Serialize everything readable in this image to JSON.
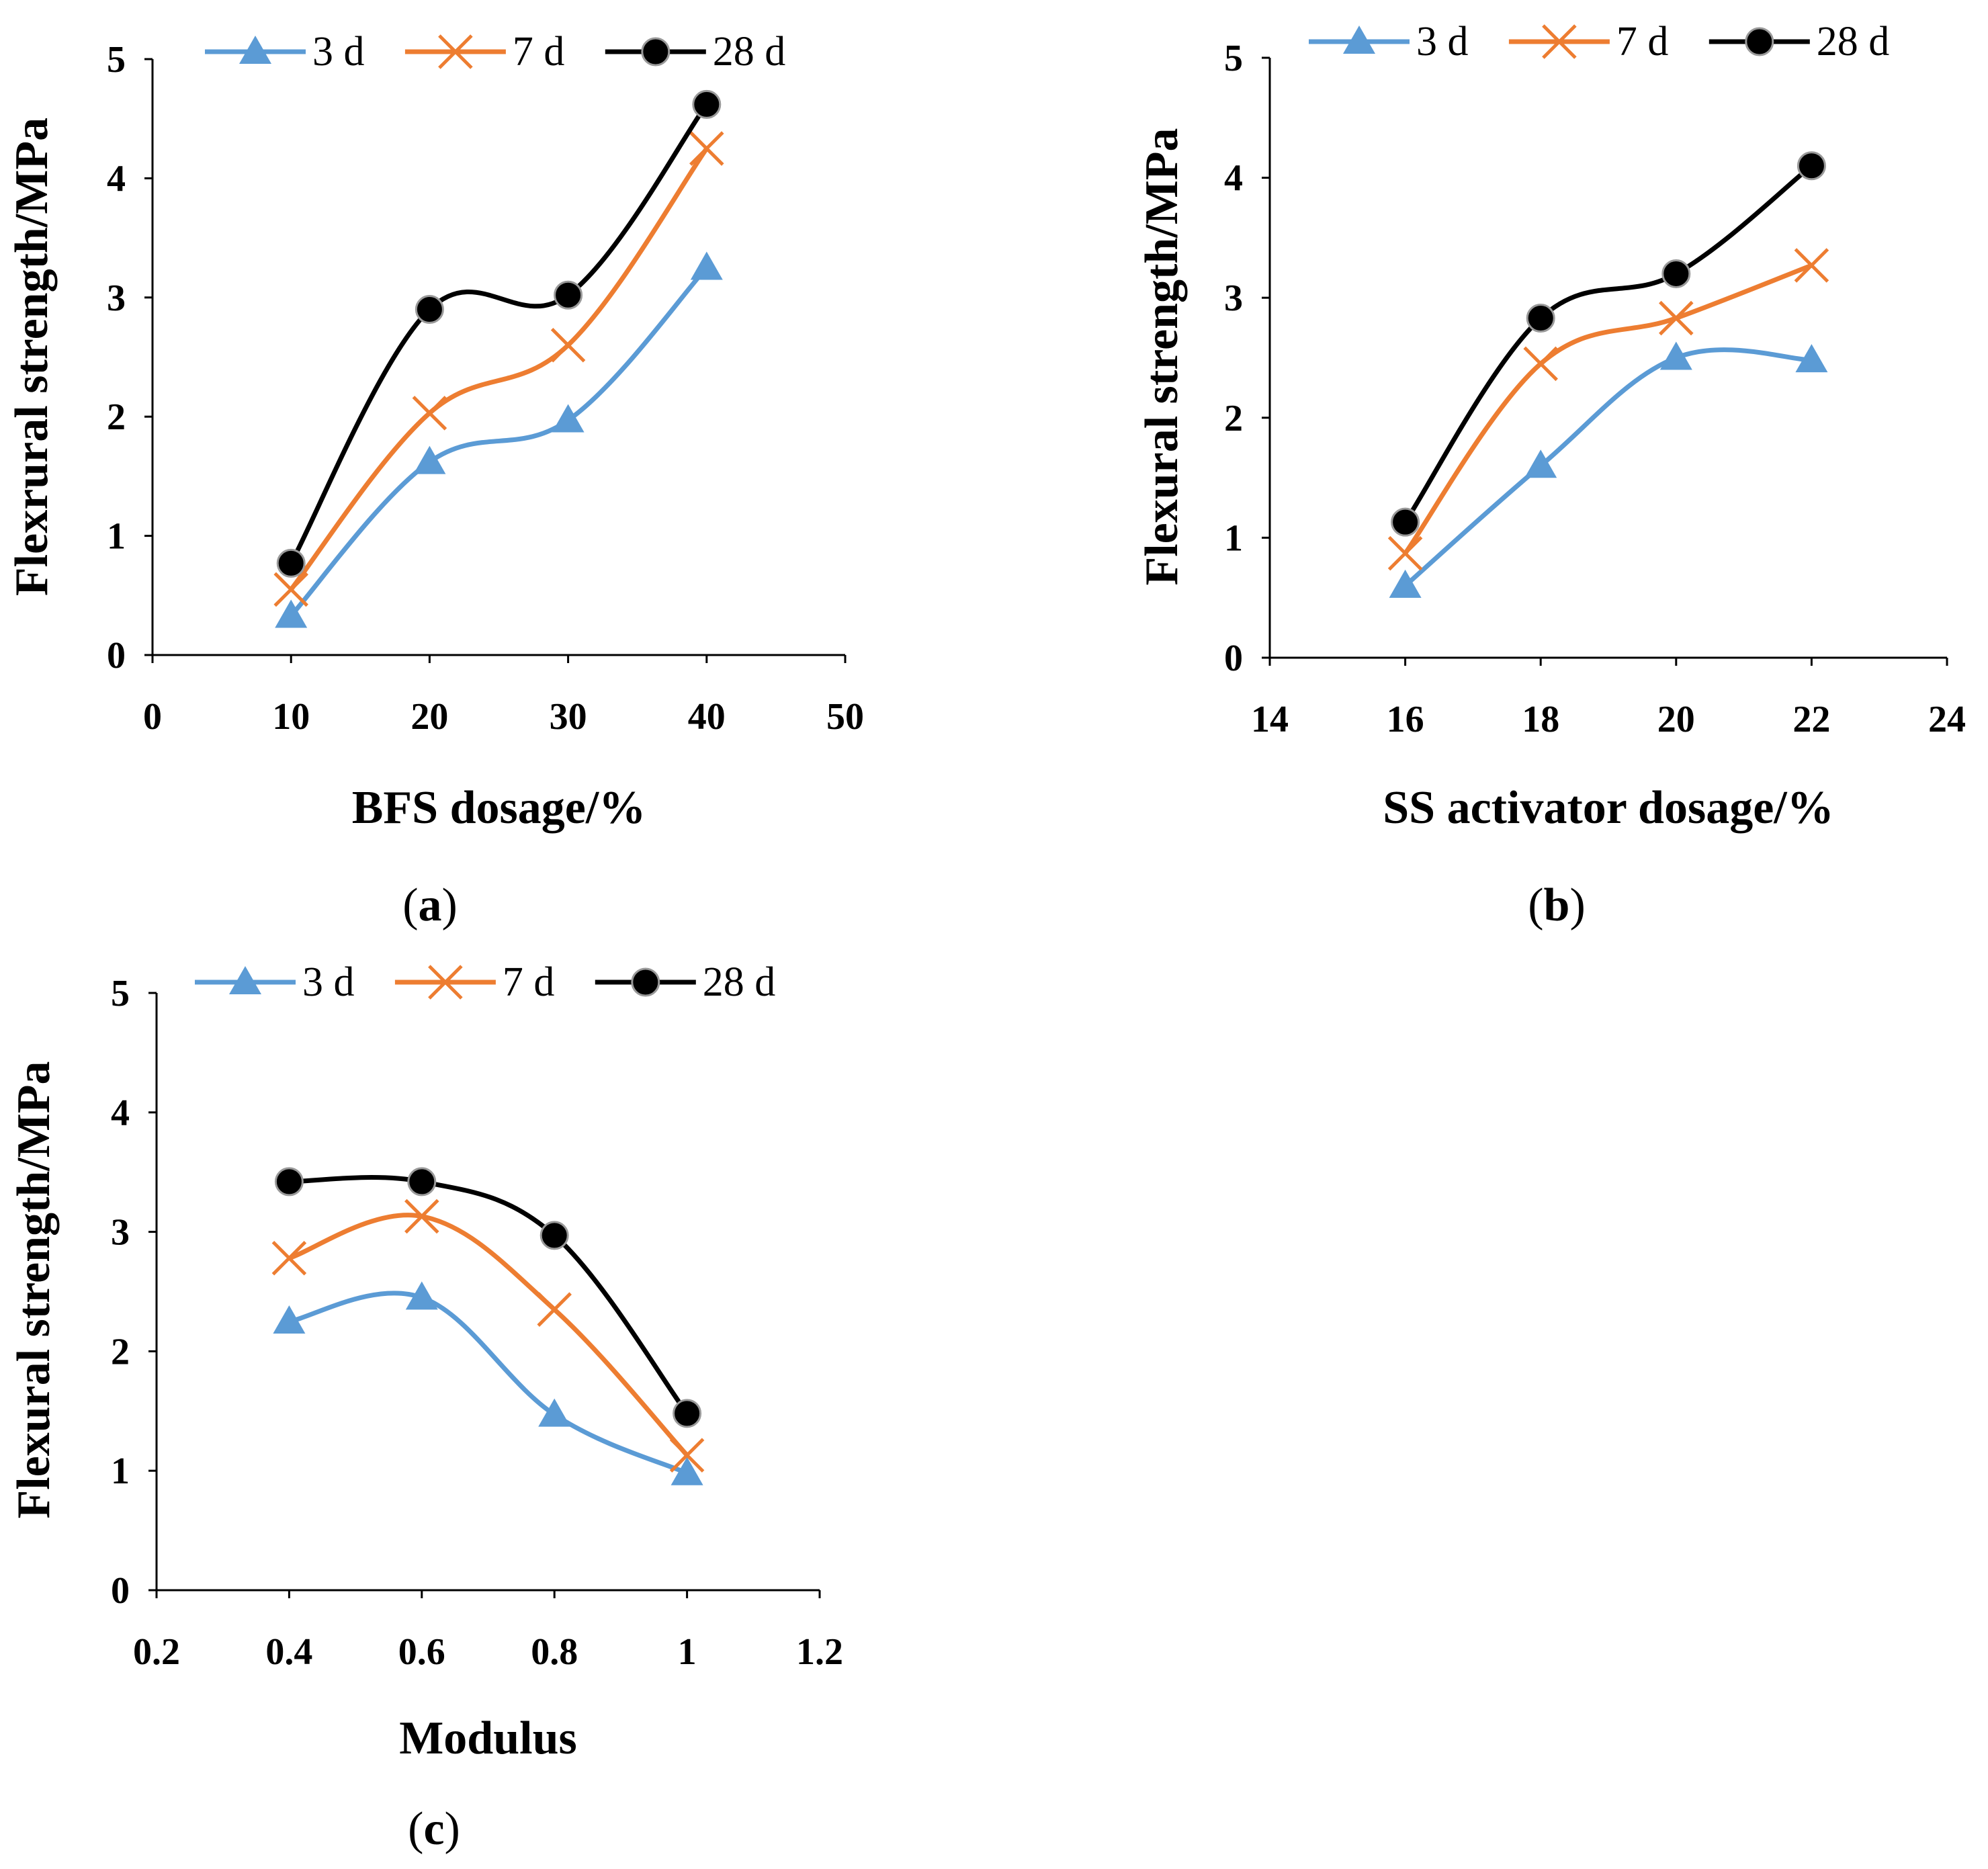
{
  "colors": {
    "3d": "#5B9BD5",
    "7d": "#ED7D31",
    "28d": "#000000",
    "axis": "#000000"
  },
  "legend": [
    "3 d",
    "7 d",
    "28 d"
  ],
  "chart_data": [
    {
      "type": "line",
      "caption_open": "(",
      "caption_letter": "a",
      "caption_close": ")",
      "xlabel": "BFS dosage/%",
      "ylabel": "Flexrural strength/MPa",
      "xlim": [
        0,
        50
      ],
      "ylim": [
        0,
        5
      ],
      "xticks": [
        0,
        10,
        20,
        30,
        40,
        50
      ],
      "xtick_labels": [
        "0",
        "10",
        "20",
        "30",
        "40",
        "50"
      ],
      "yticks": [
        0,
        1,
        2,
        3,
        4,
        5
      ],
      "ytick_labels": [
        "0",
        "1",
        "2",
        "3",
        "4",
        "5"
      ],
      "x": [
        10,
        20,
        30,
        40
      ],
      "series": [
        {
          "name": "3 d",
          "values": [
            0.33,
            1.62,
            1.97,
            3.25
          ]
        },
        {
          "name": "7 d",
          "values": [
            0.55,
            2.03,
            2.6,
            4.25
          ]
        },
        {
          "name": "28 d",
          "values": [
            0.77,
            2.9,
            3.02,
            4.62
          ]
        }
      ]
    },
    {
      "type": "line",
      "caption_open": "(",
      "caption_letter": "b",
      "caption_close": ")",
      "xlabel": "SS activator dosage/%",
      "ylabel": "Flexural strength/MPa",
      "xlim": [
        14,
        24
      ],
      "ylim": [
        0,
        5
      ],
      "xticks": [
        14,
        16,
        18,
        20,
        22,
        24
      ],
      "xtick_labels": [
        "14",
        "16",
        "18",
        "20",
        "22",
        "24"
      ],
      "yticks": [
        0,
        1,
        2,
        3,
        4,
        5
      ],
      "ytick_labels": [
        "0",
        "1",
        "2",
        "3",
        "4",
        "5"
      ],
      "x": [
        16,
        18,
        20,
        22
      ],
      "series": [
        {
          "name": "3 d",
          "values": [
            0.6,
            1.6,
            2.5,
            2.48
          ]
        },
        {
          "name": "7 d",
          "values": [
            0.87,
            2.45,
            2.83,
            3.27
          ]
        },
        {
          "name": "28 d",
          "values": [
            1.13,
            2.83,
            3.2,
            4.1
          ]
        }
      ]
    },
    {
      "type": "line",
      "caption_open": "(",
      "caption_letter": "c",
      "caption_close": ")",
      "xlabel": "Modulus",
      "ylabel": "Flexural strength/MPa",
      "xlim": [
        0.2,
        1.2
      ],
      "ylim": [
        0,
        5
      ],
      "xticks": [
        0.2,
        0.4,
        0.6,
        0.8,
        1.0,
        1.2
      ],
      "xtick_labels": [
        "0.2",
        "0.4",
        "0.6",
        "0.8",
        "1",
        "1.2"
      ],
      "yticks": [
        0,
        1,
        2,
        3,
        4,
        5
      ],
      "ytick_labels": [
        "0",
        "1",
        "2",
        "3",
        "4",
        "5"
      ],
      "x": [
        0.4,
        0.6,
        0.8,
        1.0
      ],
      "series": [
        {
          "name": "3 d",
          "values": [
            2.25,
            2.45,
            1.47,
            0.98
          ]
        },
        {
          "name": "7 d",
          "values": [
            2.78,
            3.13,
            2.35,
            1.13
          ]
        },
        {
          "name": "28 d",
          "values": [
            3.42,
            3.42,
            2.97,
            1.48
          ]
        }
      ]
    }
  ]
}
